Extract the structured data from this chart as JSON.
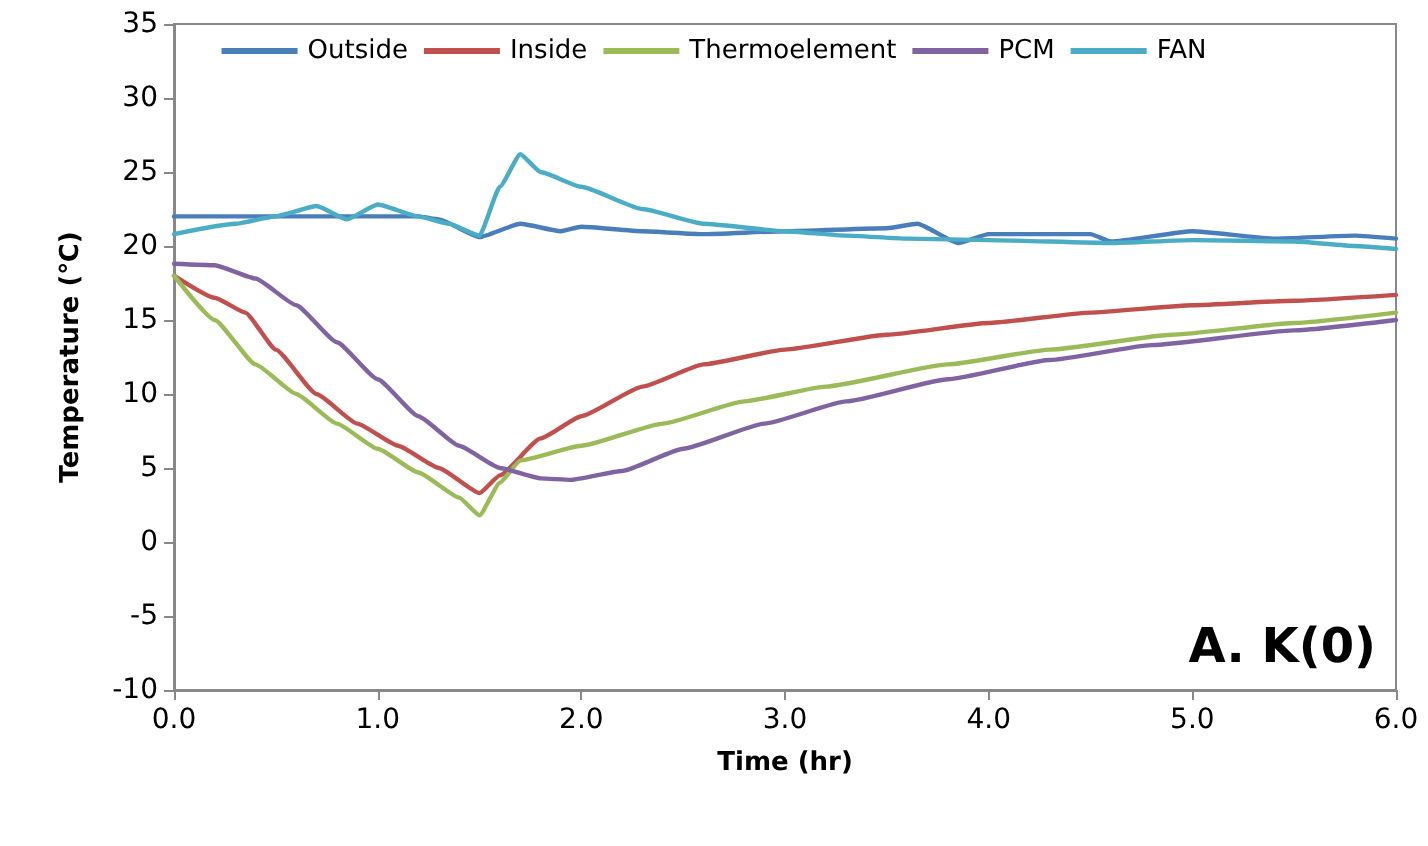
{
  "chart_data": {
    "type": "line",
    "xlabel": "Time (hr)",
    "ylabel": "Temperature (℃)",
    "xlim": [
      0,
      6
    ],
    "xticks": [
      {
        "value": 0,
        "label": "0.0"
      },
      {
        "value": 1,
        "label": "1.0"
      },
      {
        "value": 2,
        "label": "2.0"
      },
      {
        "value": 3,
        "label": "3.0"
      },
      {
        "value": 4,
        "label": "4.0"
      },
      {
        "value": 5,
        "label": "5.0"
      },
      {
        "value": 6,
        "label": "6.0"
      }
    ],
    "ylim": [
      -10,
      35
    ],
    "yticks": [
      -10,
      -5,
      0,
      5,
      10,
      15,
      20,
      25,
      30,
      35
    ],
    "grid": false,
    "legend": "top",
    "marker": "none",
    "line_style": "solid",
    "annotations": [
      "A. K(0)"
    ],
    "series": [
      {
        "name": "Outside",
        "color": "#4a7ebb",
        "x": [
          0,
          0.5,
          1.0,
          1.2,
          1.3,
          1.5,
          1.7,
          1.9,
          2.0,
          2.3,
          2.6,
          3.0,
          3.5,
          3.65,
          3.85,
          4.0,
          4.5,
          4.6,
          5.0,
          5.4,
          5.8,
          6.0
        ],
        "values": [
          22,
          22,
          22,
          22,
          21.8,
          20.6,
          21.5,
          21,
          21.3,
          21,
          20.8,
          21,
          21.2,
          21.5,
          20.2,
          20.8,
          20.8,
          20.3,
          21,
          20.5,
          20.7,
          20.5
        ]
      },
      {
        "name": "Inside",
        "color": "#c0504d",
        "x": [
          0,
          0.2,
          0.35,
          0.5,
          0.7,
          0.9,
          1.1,
          1.3,
          1.5,
          1.6,
          1.8,
          2.0,
          2.3,
          2.6,
          3.0,
          3.5,
          4.0,
          4.5,
          5.0,
          5.5,
          6.0
        ],
        "values": [
          18,
          16.5,
          15.5,
          13,
          10,
          8,
          6.5,
          5,
          3.3,
          4.5,
          7,
          8.5,
          10.5,
          12,
          13,
          14,
          14.8,
          15.5,
          16,
          16.3,
          16.7
        ]
      },
      {
        "name": "Thermoelement",
        "color": "#9bbb59",
        "x": [
          0,
          0.2,
          0.4,
          0.6,
          0.8,
          1.0,
          1.2,
          1.4,
          1.5,
          1.6,
          1.7,
          2.0,
          2.4,
          2.8,
          3.2,
          3.8,
          4.3,
          4.9,
          5.5,
          6.0
        ],
        "values": [
          18,
          15,
          12,
          10,
          8,
          6.3,
          4.7,
          3,
          1.8,
          4,
          5.5,
          6.5,
          8,
          9.5,
          10.5,
          12,
          13,
          14,
          14.8,
          15.5
        ]
      },
      {
        "name": "PCM",
        "color": "#8064a2",
        "x": [
          0,
          0.2,
          0.4,
          0.6,
          0.8,
          1.0,
          1.2,
          1.4,
          1.6,
          1.8,
          1.95,
          2.2,
          2.5,
          2.9,
          3.3,
          3.8,
          4.3,
          4.8,
          5.5,
          6.0
        ],
        "values": [
          18.8,
          18.7,
          17.8,
          16,
          13.5,
          11,
          8.5,
          6.5,
          5,
          4.3,
          4.2,
          4.8,
          6.3,
          8,
          9.5,
          11,
          12.3,
          13.3,
          14.3,
          15
        ]
      },
      {
        "name": "FAN",
        "color": "#4bacc6",
        "x": [
          0,
          0.3,
          0.5,
          0.7,
          0.85,
          1.0,
          1.2,
          1.35,
          1.5,
          1.6,
          1.7,
          1.8,
          2.0,
          2.3,
          2.6,
          3.0,
          3.3,
          3.6,
          4.0,
          4.6,
          5.0,
          5.5,
          5.8,
          6.0
        ],
        "values": [
          20.8,
          21.5,
          22,
          22.7,
          21.8,
          22.8,
          22,
          21.5,
          20.7,
          24,
          26.2,
          25,
          24,
          22.5,
          21.5,
          21,
          20.7,
          20.5,
          20.4,
          20.2,
          20.4,
          20.3,
          20,
          19.8
        ]
      }
    ]
  }
}
